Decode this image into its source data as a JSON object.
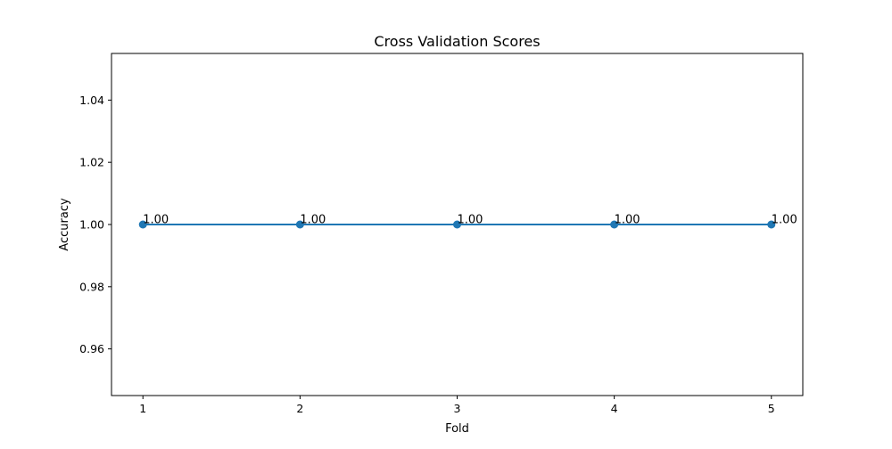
{
  "chart_data": {
    "type": "line",
    "title": "Cross Validation Scores",
    "xlabel": "Fold",
    "ylabel": "Accuracy",
    "x": [
      1,
      2,
      3,
      4,
      5
    ],
    "series": [
      {
        "values": [
          1.0,
          1.0,
          1.0,
          1.0,
          1.0
        ],
        "labels": [
          "1.00",
          "1.00",
          "1.00",
          "1.00",
          "1.00"
        ],
        "color": "#1f77b4",
        "marker": "circle"
      }
    ],
    "xticks": [
      1,
      2,
      3,
      4,
      5
    ],
    "xtick_labels": [
      "1",
      "2",
      "3",
      "4",
      "5"
    ],
    "yticks": [
      0.96,
      0.98,
      1.0,
      1.02,
      1.04
    ],
    "ytick_labels": [
      "0.96",
      "0.98",
      "1.00",
      "1.02",
      "1.04"
    ],
    "xlim": [
      0.8,
      5.2
    ],
    "ylim": [
      0.945,
      1.055
    ],
    "grid": false,
    "legend": false
  }
}
